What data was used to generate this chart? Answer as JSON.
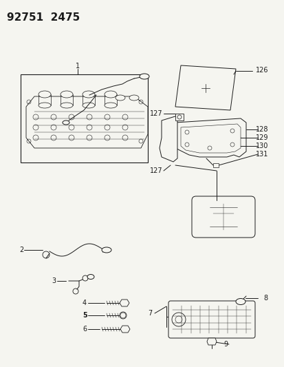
{
  "title": "92751  2475",
  "background_color": "#f5f5f0",
  "line_color": "#1a1a1a",
  "text_color": "#1a1a1a",
  "title_fontsize": 11,
  "label_fontsize": 7,
  "figsize": [
    4.14,
    5.33
  ],
  "dpi": 100,
  "img_bg": "#f5f5f0"
}
